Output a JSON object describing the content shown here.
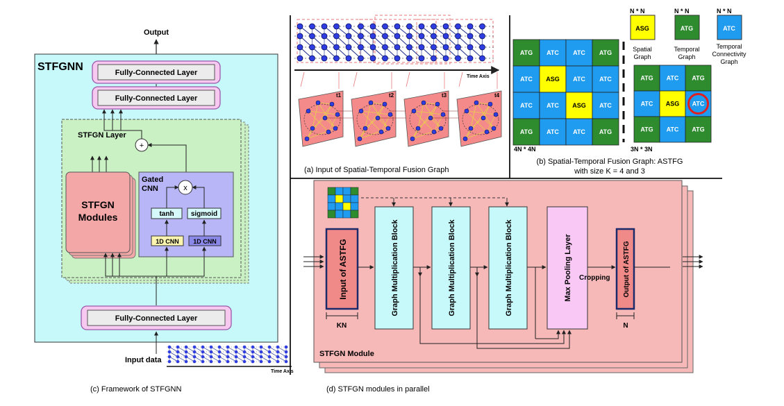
{
  "panel_c": {
    "output": "Output",
    "stfgnn": "STFGNN",
    "fc1": "Fully-Connected Layer",
    "fc2": "Fully-Connected Layer",
    "layer": "STFGN Layer",
    "plus": "+",
    "modules_l1": "STFGN",
    "modules_l2": "Modules",
    "gated_l1": "Gated",
    "gated_l2": "CNN",
    "times": "x",
    "tanh": "tanh",
    "sigmoid": "sigmoid",
    "cnn1": "1D CNN",
    "cnn2": "1D CNN",
    "fc3": "Fully-Connected Layer",
    "input": "Input data",
    "time_axis": "Time Axis",
    "caption": "(c) Framework of STFGNN"
  },
  "panel_a": {
    "time_axis": "Time Axis",
    "t1": "t1",
    "t2": "t2",
    "t3": "t3",
    "t4": "t4",
    "caption": "(a) Input of Spatial-Temporal Fusion Graph"
  },
  "panel_b": {
    "nn1": "N * N",
    "nn2": "N * N",
    "nn3": "N * N",
    "a_sg": "ASG",
    "a_tg": "ATG",
    "a_tc": "ATC",
    "leg_spatial_l1": "Spatial",
    "leg_spatial_l2": "Graph",
    "leg_temporal_l1": "Temporal",
    "leg_temporal_l2": "Graph",
    "leg_tc_l1": "Temporal",
    "leg_tc_l2": "Connectivity",
    "leg_tc_l3": "Graph",
    "size4": "4N * 4N",
    "size3": "3N * 3N",
    "caption_l1": "(b) Spatial-Temporal Fusion Graph: ASTFG",
    "caption_l2": "with size K = 4 and 3"
  },
  "panel_d": {
    "input": "Input of ASTFG",
    "kn": "KN",
    "gmb1": "Graph Multiplication Block",
    "gmb2": "Graph Multiplication Block",
    "gmb3": "Graph Multiplication Block",
    "maxpool": "Max Pooling Layer",
    "cropping": "Cropping",
    "output": "Output of ASTFG",
    "n": "N",
    "module": "STFGN Module",
    "caption": "(d) STFGN modules in parallel"
  },
  "colors": {
    "cyan": "#c7f9fb",
    "pink": "#f7c8f0",
    "green": "#c9f1c4",
    "red": "#f3a7a6",
    "purple": "#b8b6f7",
    "yellow": "#ffff00",
    "darkgreen": "#2e8b2e",
    "blue": "#1f9bf0",
    "module_bg": "#f7b8b8"
  }
}
